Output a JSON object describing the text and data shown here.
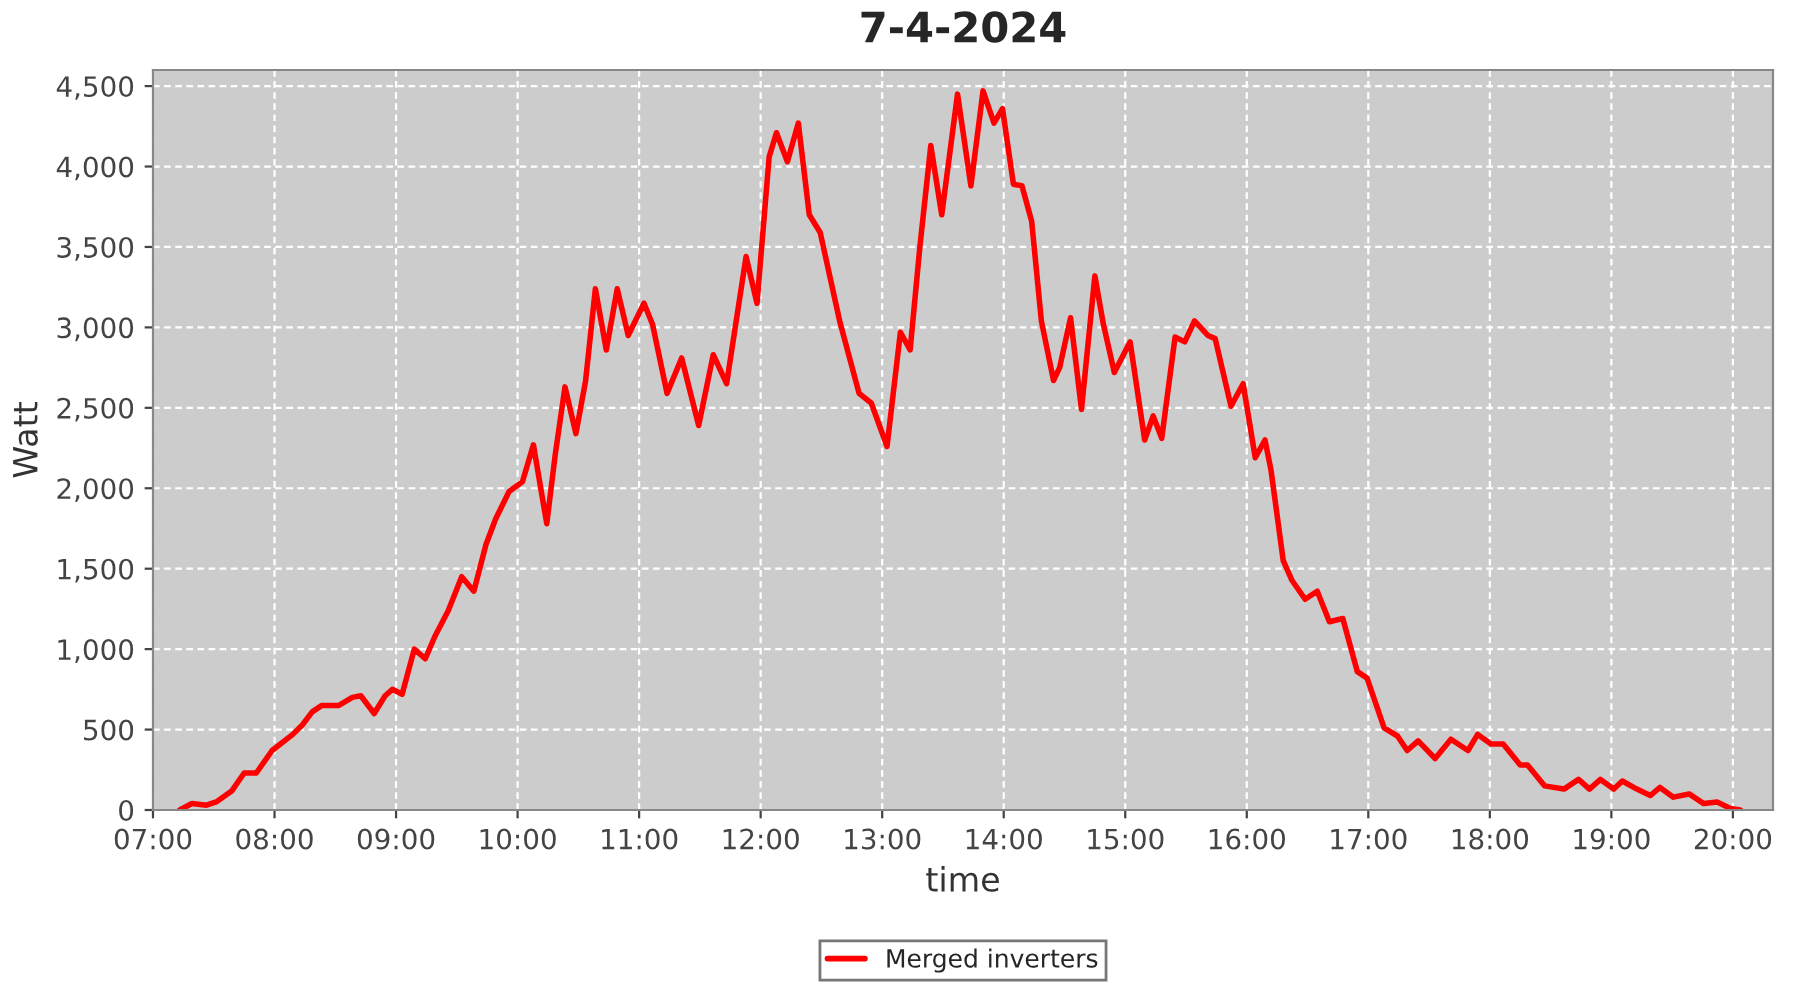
{
  "chart_data": {
    "type": "line",
    "title": "7-4-2024",
    "xlabel": "time",
    "ylabel": "Watt",
    "legend": "bottom",
    "grid": true,
    "marker": "none",
    "line_style": "solid",
    "xlim": [
      7,
      20.33
    ],
    "xticks": [
      {
        "value": 7,
        "label": "07:00"
      },
      {
        "value": 8,
        "label": "08:00"
      },
      {
        "value": 9,
        "label": "09:00"
      },
      {
        "value": 10,
        "label": "10:00"
      },
      {
        "value": 11,
        "label": "11:00"
      },
      {
        "value": 12,
        "label": "12:00"
      },
      {
        "value": 13,
        "label": "13:00"
      },
      {
        "value": 14,
        "label": "14:00"
      },
      {
        "value": 15,
        "label": "15:00"
      },
      {
        "value": 16,
        "label": "16:00"
      },
      {
        "value": 17,
        "label": "17:00"
      },
      {
        "value": 18,
        "label": "18:00"
      },
      {
        "value": 19,
        "label": "19:00"
      },
      {
        "value": 20,
        "label": "20:00"
      }
    ],
    "ylim": [
      0,
      4600
    ],
    "yticks": [
      0,
      500,
      {
        "value": 1000,
        "label": "1,000"
      },
      {
        "value": 1500,
        "label": "1,500"
      },
      {
        "value": 2000,
        "label": "2,000"
      },
      {
        "value": 2500,
        "label": "2,500"
      },
      {
        "value": 3000,
        "label": "3,000"
      },
      {
        "value": 3500,
        "label": "3,500"
      },
      {
        "value": 4000,
        "label": "4,000"
      },
      {
        "value": 4500,
        "label": "4,500"
      }
    ],
    "series": [
      {
        "name": "Merged inverters",
        "color": "#ff0000",
        "x": [
          7.22,
          7.32,
          7.44,
          7.52,
          7.65,
          7.75,
          7.85,
          7.98,
          8.15,
          8.23,
          8.31,
          8.39,
          8.53,
          8.64,
          8.71,
          8.82,
          8.91,
          8.97,
          9.05,
          9.15,
          9.24,
          9.32,
          9.43,
          9.54,
          9.64,
          9.74,
          9.82,
          9.93,
          10.04,
          10.13,
          10.24,
          10.31,
          10.39,
          10.48,
          10.56,
          10.64,
          10.73,
          10.82,
          10.91,
          11.04,
          11.11,
          11.23,
          11.35,
          11.49,
          11.61,
          11.72,
          11.88,
          11.97,
          12.07,
          12.13,
          12.22,
          12.31,
          12.4,
          12.49,
          12.65,
          12.81,
          12.91,
          13.04,
          13.15,
          13.23,
          13.31,
          13.4,
          13.49,
          13.62,
          13.73,
          13.83,
          13.92,
          13.99,
          14.08,
          14.15,
          14.23,
          14.31,
          14.41,
          14.46,
          14.55,
          14.64,
          14.75,
          14.82,
          14.91,
          15.04,
          15.16,
          15.23,
          15.3,
          15.41,
          15.49,
          15.57,
          15.68,
          15.74,
          15.87,
          15.97,
          16.07,
          16.15,
          16.2,
          16.3,
          16.37,
          16.48,
          16.58,
          16.68,
          16.79,
          16.91,
          16.99,
          17.13,
          17.24,
          17.32,
          17.41,
          17.55,
          17.68,
          17.82,
          17.9,
          18.01,
          18.11,
          18.25,
          18.31,
          18.45,
          18.61,
          18.73,
          18.82,
          18.91,
          19.02,
          19.09,
          19.21,
          19.32,
          19.4,
          19.51,
          19.64,
          19.76,
          19.87,
          19.98,
          20.06
        ],
        "values": [
          0,
          40,
          30,
          50,
          120,
          230,
          230,
          370,
          470,
          530,
          610,
          650,
          650,
          700,
          710,
          600,
          710,
          750,
          720,
          1000,
          940,
          1080,
          1240,
          1450,
          1360,
          1650,
          1810,
          1980,
          2040,
          2270,
          1780,
          2210,
          2630,
          2340,
          2670,
          3240,
          2860,
          3240,
          2950,
          3150,
          3020,
          2590,
          2810,
          2390,
          2830,
          2650,
          3440,
          3150,
          4060,
          4210,
          4030,
          4270,
          3700,
          3590,
          3040,
          2590,
          2530,
          2260,
          2970,
          2860,
          3500,
          4130,
          3700,
          4450,
          3880,
          4470,
          4270,
          4360,
          3890,
          3880,
          3660,
          3040,
          2670,
          2750,
          3060,
          2490,
          3320,
          3020,
          2720,
          2910,
          2300,
          2450,
          2310,
          2940,
          2910,
          3040,
          2950,
          2930,
          2510,
          2650,
          2190,
          2300,
          2110,
          1550,
          1430,
          1310,
          1360,
          1170,
          1190,
          860,
          820,
          510,
          460,
          370,
          430,
          320,
          440,
          370,
          470,
          410,
          410,
          280,
          280,
          150,
          130,
          190,
          130,
          190,
          130,
          180,
          130,
          90,
          140,
          80,
          100,
          40,
          50,
          10,
          0
        ]
      }
    ]
  }
}
